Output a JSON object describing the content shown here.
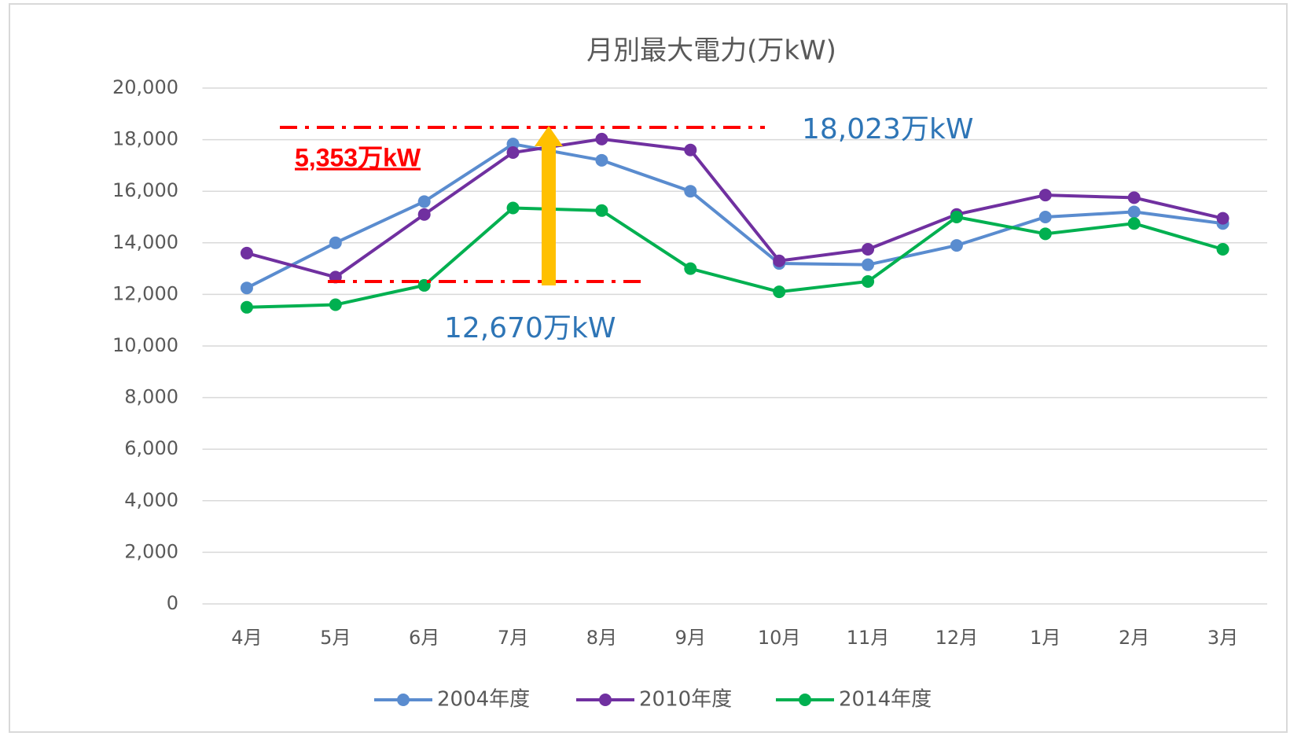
{
  "chart_data": {
    "type": "line",
    "title": "月別最大電力(万kW)",
    "categories": [
      "4月",
      "5月",
      "6月",
      "7月",
      "8月",
      "9月",
      "10月",
      "11月",
      "12月",
      "1月",
      "2月",
      "3月"
    ],
    "series": [
      {
        "name": "2004年度",
        "color": "#5a8ccf",
        "values": [
          12250,
          14000,
          15600,
          17830,
          17200,
          16000,
          13200,
          13150,
          13900,
          15000,
          15200,
          14750
        ]
      },
      {
        "name": "2010年度",
        "color": "#7030a0",
        "values": [
          13600,
          12670,
          15100,
          17500,
          18023,
          17600,
          13300,
          13750,
          15100,
          15850,
          15750,
          14950
        ]
      },
      {
        "name": "2014年度",
        "color": "#00b050",
        "values": [
          11500,
          11600,
          12350,
          15350,
          15250,
          13000,
          12100,
          12500,
          15000,
          14350,
          14750,
          13750
        ]
      }
    ],
    "ylim": [
      0,
      20000
    ],
    "yticks": [
      0,
      {
        "value": 2000,
        "label": "2,000"
      },
      {
        "value": 4000,
        "label": "4,000"
      },
      {
        "value": 6000,
        "label": "6,000"
      },
      {
        "value": 8000,
        "label": "8,000"
      },
      {
        "value": 10000,
        "label": "10,000"
      },
      {
        "value": 12000,
        "label": "12,000"
      },
      {
        "value": 14000,
        "label": "14,000"
      },
      {
        "value": 16000,
        "label": "16,000"
      },
      {
        "value": 18000,
        "label": "18,000"
      },
      {
        "value": 20000,
        "label": "20,000"
      }
    ],
    "grid": true,
    "legend": "bottom",
    "annotations": [
      "18,023万kW",
      "12,670万kW",
      "5,353万kW"
    ]
  }
}
